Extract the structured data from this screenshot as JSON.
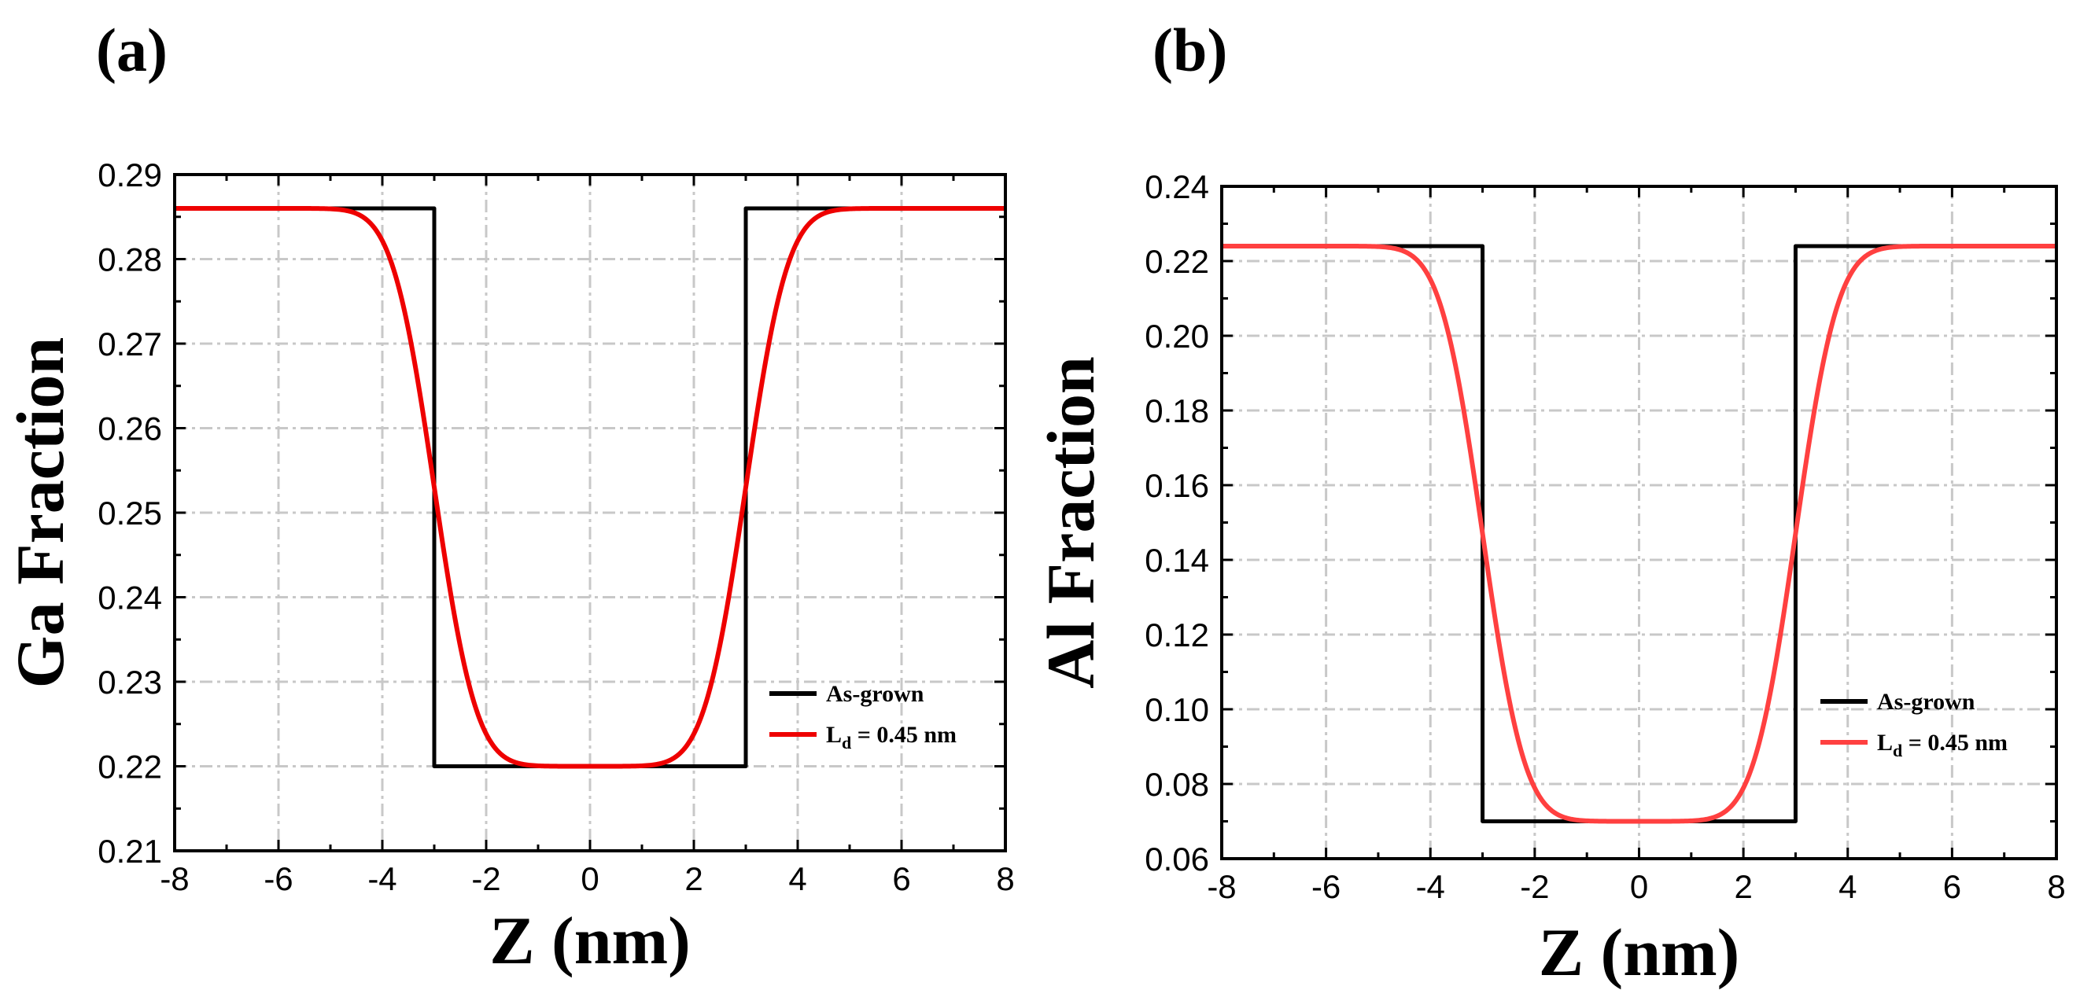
{
  "chart_data": [
    {
      "type": "line",
      "panel_label": "(a)",
      "xlabel": "Z (nm)",
      "ylabel": "Ga Fraction",
      "xlim": [
        -8,
        8
      ],
      "ylim": [
        0.21,
        0.29
      ],
      "xticks": [
        -8,
        -6,
        -4,
        -2,
        0,
        2,
        4,
        6,
        8
      ],
      "xtick_labels": [
        "-8",
        "-6",
        "-4",
        "-2",
        "0",
        "2",
        "4",
        "6",
        "8"
      ],
      "yticks": [
        0.21,
        0.22,
        0.23,
        0.24,
        0.25,
        0.26,
        0.27,
        0.28,
        0.29
      ],
      "ytick_labels": [
        "0.21",
        "0.22",
        "0.23",
        "0.24",
        "0.25",
        "0.26",
        "0.27",
        "0.28",
        "0.29"
      ],
      "grid": true,
      "legend_position": "bottom-right",
      "series": [
        {
          "name": "As-grown",
          "style": "step",
          "color": "#000000",
          "x": [
            -8,
            -3,
            -3,
            3,
            3,
            8
          ],
          "y": [
            0.286,
            0.286,
            0.22,
            0.22,
            0.286,
            0.286
          ]
        },
        {
          "name": "L_d = 0.45 nm",
          "style": "smooth",
          "color": "#ee0000",
          "outer_value": 0.286,
          "well_value": 0.22,
          "well_halfwidth": 3,
          "edge_width": 0.45
        }
      ],
      "legend": [
        {
          "main": "As-grown",
          "sub": "",
          "rest": "",
          "color": "#000000"
        },
        {
          "main": "L",
          "sub": "d",
          "rest": " = 0.45 nm",
          "color": "#ee0000"
        }
      ]
    },
    {
      "type": "line",
      "panel_label": "(b)",
      "xlabel": "Z (nm)",
      "ylabel": "Al Fraction",
      "xlim": [
        -8,
        8
      ],
      "ylim": [
        0.06,
        0.24
      ],
      "xticks": [
        -8,
        -6,
        -4,
        -2,
        0,
        2,
        4,
        6,
        8
      ],
      "xtick_labels": [
        "-8",
        "-6",
        "-4",
        "-2",
        "0",
        "2",
        "4",
        "6",
        "8"
      ],
      "yticks": [
        0.06,
        0.08,
        0.1,
        0.12,
        0.14,
        0.16,
        0.18,
        0.2,
        0.22,
        0.24
      ],
      "ytick_labels": [
        "0.06",
        "0.08",
        "0.10",
        "0.12",
        "0.14",
        "0.16",
        "0.18",
        "0.20",
        "0.22",
        "0.24"
      ],
      "grid": true,
      "legend_position": "bottom-right",
      "series": [
        {
          "name": "As-grown",
          "style": "step",
          "color": "#000000",
          "x": [
            -8,
            -3,
            -3,
            3,
            3,
            8
          ],
          "y": [
            0.224,
            0.224,
            0.07,
            0.07,
            0.224,
            0.224
          ]
        },
        {
          "name": "L_d = 0.45 nm",
          "style": "smooth",
          "color": "#ff4040",
          "outer_value": 0.224,
          "well_value": 0.07,
          "well_halfwidth": 3,
          "edge_width": 0.45
        }
      ],
      "legend": [
        {
          "main": "As-grown",
          "sub": "",
          "rest": "",
          "color": "#000000"
        },
        {
          "main": "L",
          "sub": "d",
          "rest": " = 0.45 nm",
          "color": "#ff4040"
        }
      ]
    }
  ]
}
